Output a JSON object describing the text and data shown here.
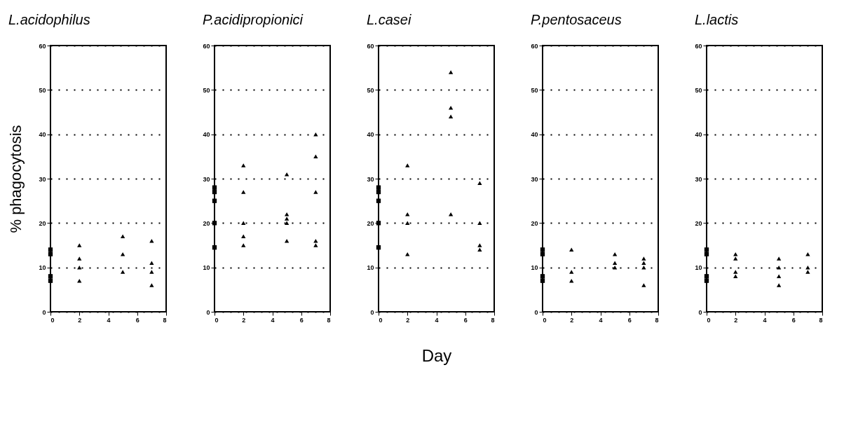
{
  "chart_data": [
    {
      "type": "scatter",
      "title": "L.acidophilus",
      "ylabel": "% phagocytosis",
      "xlim": [
        0,
        8
      ],
      "xticks": [
        0,
        2,
        4,
        6,
        8
      ],
      "ylim": [
        0,
        60
      ],
      "yticks": [
        0,
        10,
        20,
        30,
        40,
        50,
        60
      ],
      "grid": "y",
      "line_style": "dotted",
      "series": [
        {
          "color": "#000000",
          "marker": "square",
          "x": [
            0,
            0,
            0,
            0
          ],
          "values": [
            14,
            13,
            8,
            7
          ]
        },
        {
          "color": "#000000",
          "marker": "triangle",
          "x": [
            2,
            2,
            2,
            2,
            5,
            5,
            5,
            7,
            7,
            7,
            7
          ],
          "values": [
            15,
            12,
            10,
            7,
            17,
            13,
            9,
            16,
            11,
            9,
            6
          ]
        }
      ]
    },
    {
      "type": "scatter",
      "title": "P.acidipropionici",
      "xlim": [
        0,
        8
      ],
      "xticks": [
        0,
        2,
        4,
        6,
        8
      ],
      "ylim": [
        0,
        60
      ],
      "yticks": [
        0,
        10,
        20,
        30,
        40,
        50,
        60
      ],
      "grid": "y",
      "line_style": "dotted",
      "series": [
        {
          "color": "#000000",
          "marker": "square",
          "x": [
            0,
            0,
            0,
            0,
            0
          ],
          "values": [
            28,
            27,
            25,
            20,
            14.5
          ]
        },
        {
          "color": "#000000",
          "marker": "triangle",
          "x": [
            2,
            2,
            2,
            2,
            2,
            5,
            5,
            5,
            5,
            5,
            7,
            7,
            7,
            7,
            7
          ],
          "values": [
            33,
            27,
            20,
            17,
            15,
            31,
            22,
            21,
            20,
            16,
            40,
            35,
            27,
            16,
            15
          ]
        }
      ]
    },
    {
      "type": "scatter",
      "title": "L.casei",
      "xlabel": "Day",
      "xlim": [
        0,
        8
      ],
      "xticks": [
        0,
        2,
        4,
        6,
        8
      ],
      "ylim": [
        0,
        60
      ],
      "yticks": [
        0,
        10,
        20,
        30,
        40,
        50,
        60
      ],
      "grid": "y",
      "line_style": "dotted",
      "series": [
        {
          "color": "#000000",
          "marker": "square",
          "x": [
            0,
            0,
            0,
            0,
            0
          ],
          "values": [
            28,
            27,
            25,
            20,
            14.5
          ]
        },
        {
          "color": "#000000",
          "marker": "triangle",
          "x": [
            2,
            2,
            2,
            2,
            5,
            5,
            5,
            5,
            7,
            7,
            7,
            7
          ],
          "values": [
            33,
            22,
            20,
            13,
            54,
            46,
            44,
            22,
            29,
            20,
            15,
            14
          ]
        }
      ]
    },
    {
      "type": "scatter",
      "title": "P.pentosaceus",
      "xlim": [
        0,
        8
      ],
      "xticks": [
        0,
        2,
        4,
        6,
        8
      ],
      "ylim": [
        0,
        60
      ],
      "yticks": [
        0,
        10,
        20,
        30,
        40,
        50,
        60
      ],
      "grid": "y",
      "line_style": "dotted",
      "series": [
        {
          "color": "#000000",
          "marker": "square",
          "x": [
            0,
            0,
            0,
            0
          ],
          "values": [
            14,
            13,
            8,
            7
          ]
        },
        {
          "color": "#000000",
          "marker": "triangle",
          "x": [
            2,
            2,
            2,
            5,
            5,
            5,
            7,
            7,
            7,
            7
          ],
          "values": [
            14,
            9,
            7,
            13,
            11,
            10,
            12,
            11,
            10,
            6
          ]
        }
      ]
    },
    {
      "type": "scatter",
      "title": "L.lactis",
      "xlim": [
        0,
        8
      ],
      "xticks": [
        0,
        2,
        4,
        6,
        8
      ],
      "ylim": [
        0,
        60
      ],
      "yticks": [
        0,
        10,
        20,
        30,
        40,
        50,
        60
      ],
      "grid": "y",
      "line_style": "dotted",
      "series": [
        {
          "color": "#000000",
          "marker": "square",
          "x": [
            0,
            0,
            0,
            0
          ],
          "values": [
            14,
            13,
            8,
            7
          ]
        },
        {
          "color": "#000000",
          "marker": "triangle",
          "x": [
            2,
            2,
            2,
            2,
            5,
            5,
            5,
            5,
            7,
            7,
            7
          ],
          "values": [
            13,
            12,
            9,
            8,
            12,
            10,
            8,
            6,
            13,
            10,
            9
          ]
        }
      ]
    }
  ]
}
